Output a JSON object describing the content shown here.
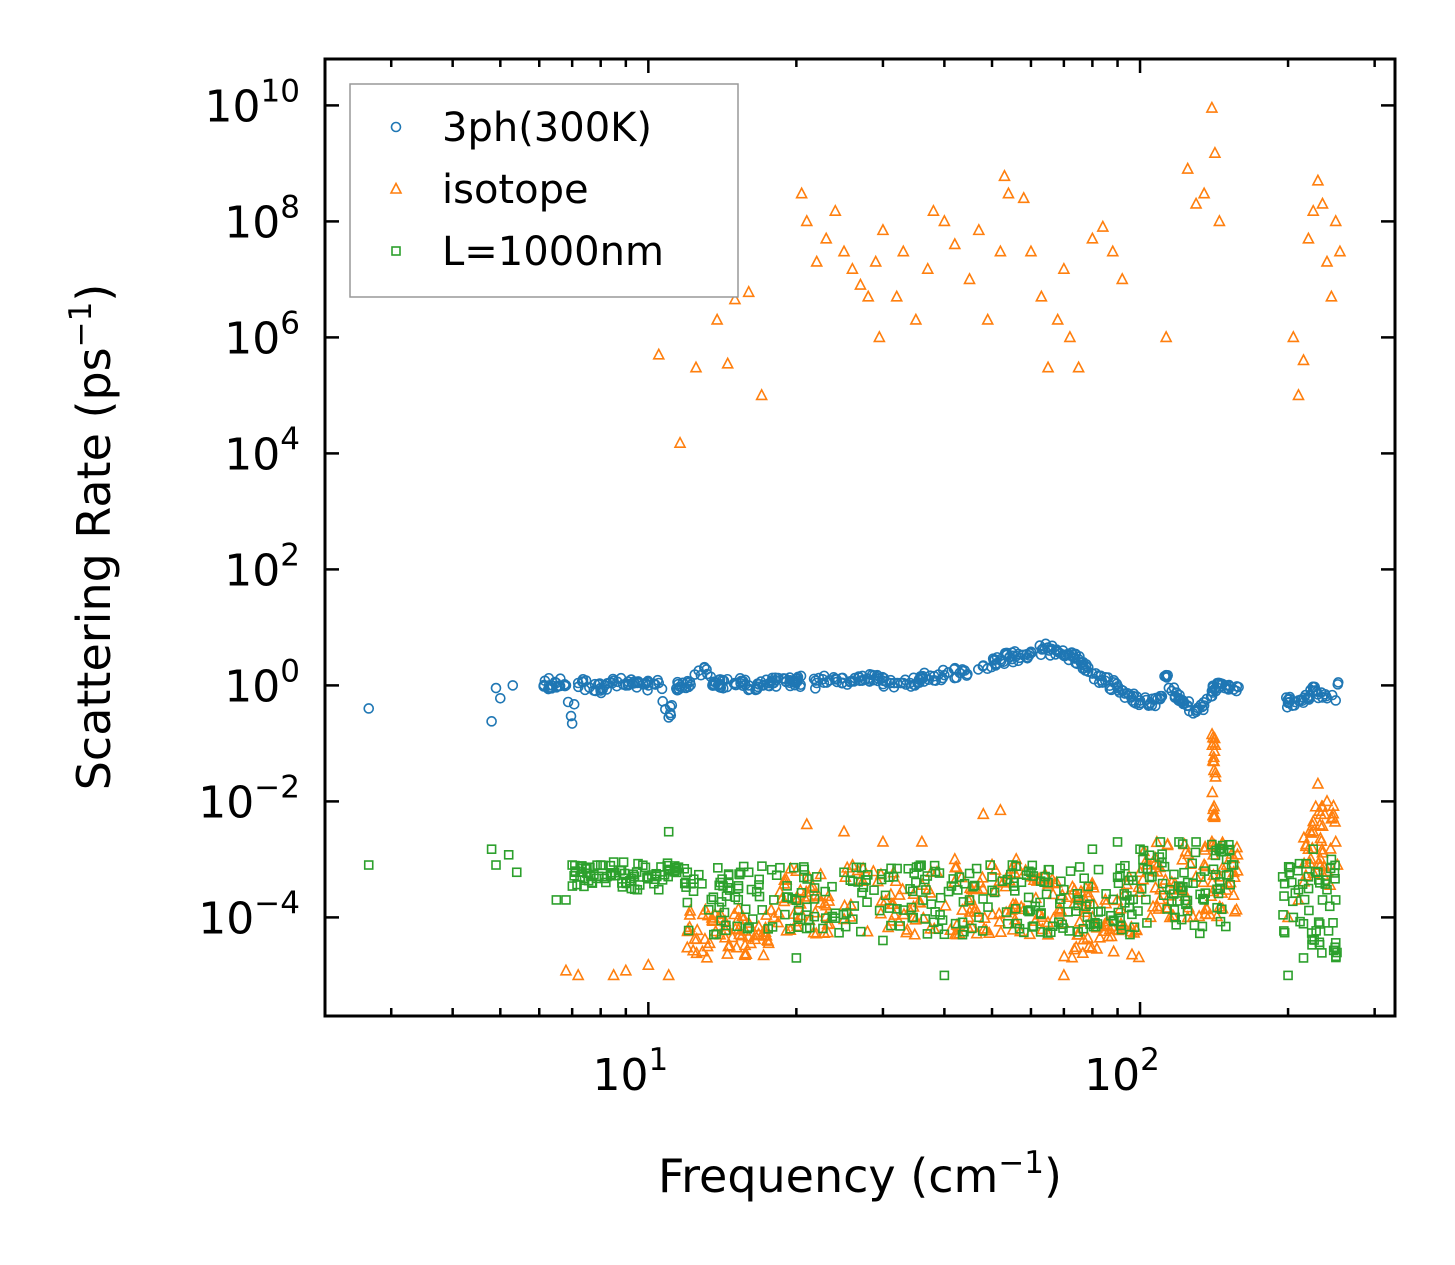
{
  "chart_data": {
    "type": "scatter",
    "xscale": "log",
    "yscale": "log",
    "xlim": [
      2.2,
      330
    ],
    "ylim_log10": [
      -5.7,
      10.8
    ],
    "xlabel": "Frequency (cm",
    "xlabel_sup": "−1",
    "xlabel_end": ")",
    "ylabel": "Scattering Rate (ps",
    "ylabel_sup": "−1",
    "ylabel_end": ")",
    "x_ticks": [
      {
        "value": 10,
        "base": "10",
        "exp": "1"
      },
      {
        "value": 100,
        "base": "10",
        "exp": "2"
      }
    ],
    "y_ticks": [
      {
        "value": -4,
        "base": "10",
        "exp": "−4"
      },
      {
        "value": -2,
        "base": "10",
        "exp": "−2"
      },
      {
        "value": 0,
        "base": "10",
        "exp": "0"
      },
      {
        "value": 2,
        "base": "10",
        "exp": "2"
      },
      {
        "value": 4,
        "base": "10",
        "exp": "4"
      },
      {
        "value": 6,
        "base": "10",
        "exp": "6"
      },
      {
        "value": 8,
        "base": "10",
        "exp": "8"
      },
      {
        "value": 10,
        "base": "10",
        "exp": "10"
      }
    ],
    "legend": {
      "position": "top-left",
      "entries": [
        {
          "label": "3ph(300K)",
          "color": "#1f77b4",
          "marker": "circle"
        },
        {
          "label": "isotope",
          "color": "#ff7f0e",
          "marker": "triangle"
        },
        {
          "label": "L=1000nm",
          "color": "#2ca02c",
          "marker": "square"
        }
      ]
    },
    "series": [
      {
        "name": "3ph(300K)",
        "color": "#1f77b4",
        "marker": "circle",
        "points": [
          [
            2.7,
            0.4
          ],
          [
            4.8,
            0.24
          ],
          [
            4.9,
            0.9
          ],
          [
            5.0,
            0.6
          ],
          [
            5.3,
            1.0
          ],
          [
            6.5,
            1.1
          ],
          [
            6.8,
            1.0
          ],
          [
            7.0,
            0.22
          ],
          [
            7.2,
            1.1
          ],
          [
            8.0,
            0.9
          ],
          [
            8.5,
            1.2
          ],
          [
            9.0,
            1.0
          ],
          [
            9.5,
            1.1
          ],
          [
            10.0,
            1.0
          ],
          [
            10.5,
            1.1
          ],
          [
            11.0,
            0.28
          ],
          [
            11.5,
            1.05
          ],
          [
            12.0,
            1.1
          ],
          [
            13.0,
            2.0
          ],
          [
            13.5,
            1.0
          ],
          [
            14.0,
            1.05
          ],
          [
            15.0,
            1.1
          ],
          [
            16.0,
            1.0
          ],
          [
            18.0,
            1.1
          ],
          [
            20.0,
            1.2
          ],
          [
            22.0,
            1.1
          ],
          [
            24.0,
            1.3
          ],
          [
            26.0,
            1.2
          ],
          [
            28.0,
            1.3
          ],
          [
            30.0,
            1.2
          ],
          [
            33.0,
            1.1
          ],
          [
            36.0,
            1.3
          ],
          [
            40.0,
            1.5
          ],
          [
            44.0,
            1.8
          ],
          [
            48.0,
            2.2
          ],
          [
            52.0,
            2.8
          ],
          [
            56.0,
            3.2
          ],
          [
            60.0,
            3.8
          ],
          [
            64.0,
            4.2
          ],
          [
            68.0,
            3.8
          ],
          [
            72.0,
            3.3
          ],
          [
            76.0,
            2.5
          ],
          [
            80.0,
            1.6
          ],
          [
            85.0,
            1.2
          ],
          [
            90.0,
            0.9
          ],
          [
            95.0,
            0.7
          ],
          [
            100.0,
            0.55
          ],
          [
            105.0,
            0.5
          ],
          [
            110.0,
            0.6
          ],
          [
            113.0,
            1.5
          ],
          [
            116.0,
            0.8
          ],
          [
            120.0,
            0.6
          ],
          [
            125.0,
            0.45
          ],
          [
            130.0,
            0.35
          ],
          [
            135.0,
            0.45
          ],
          [
            140.0,
            0.8
          ],
          [
            145.0,
            1.1
          ],
          [
            150.0,
            1.0
          ],
          [
            155.0,
            0.85
          ],
          [
            200.0,
            0.5
          ],
          [
            210.0,
            0.55
          ],
          [
            220.0,
            0.6
          ],
          [
            225.0,
            0.8
          ],
          [
            230.0,
            0.7
          ],
          [
            240.0,
            0.6
          ],
          [
            250.0,
            0.55
          ]
        ],
        "band": {
          "x": [
            6.0,
            255.0
          ],
          "low_factor": 0.8,
          "high_factor": 1.25
        }
      },
      {
        "name": "isotope",
        "color": "#ff7f0e",
        "marker": "triangle",
        "points": [
          [
            10.5,
            500000.0
          ],
          [
            11.6,
            15000.0
          ],
          [
            12.5,
            300000.0
          ],
          [
            13.8,
            2000000.0
          ],
          [
            14.5,
            350000.0
          ],
          [
            15.0,
            4500000.0
          ],
          [
            16.0,
            6000000.0
          ],
          [
            17.0,
            100000.0
          ],
          [
            20.5,
            300000000.0
          ],
          [
            21.0,
            100000000.0
          ],
          [
            22.0,
            20000000.0
          ],
          [
            23.0,
            50000000.0
          ],
          [
            24.0,
            150000000.0
          ],
          [
            25.0,
            30000000.0
          ],
          [
            26.0,
            15000000.0
          ],
          [
            27.0,
            8000000.0
          ],
          [
            28.0,
            5000000.0
          ],
          [
            29.0,
            20000000.0
          ],
          [
            29.5,
            1000000.0
          ],
          [
            30.0,
            70000000.0
          ],
          [
            32.0,
            5000000.0
          ],
          [
            33.0,
            30000000.0
          ],
          [
            35.0,
            2000000.0
          ],
          [
            37.0,
            15000000.0
          ],
          [
            38.0,
            150000000.0
          ],
          [
            40.0,
            100000000.0
          ],
          [
            42.0,
            40000000.0
          ],
          [
            45.0,
            10000000.0
          ],
          [
            47.0,
            70000000.0
          ],
          [
            49.0,
            2000000.0
          ],
          [
            52.0,
            30000000.0
          ],
          [
            53.0,
            600000000.0
          ],
          [
            54.0,
            300000000.0
          ],
          [
            58.0,
            250000000.0
          ],
          [
            60.0,
            30000000.0
          ],
          [
            63.0,
            5000000.0
          ],
          [
            65.0,
            300000.0
          ],
          [
            68.0,
            2000000.0
          ],
          [
            70.0,
            15000000.0
          ],
          [
            72.0,
            1000000.0
          ],
          [
            75.0,
            300000.0
          ],
          [
            80.0,
            50000000.0
          ],
          [
            84.0,
            80000000.0
          ],
          [
            88.0,
            30000000.0
          ],
          [
            92.0,
            10000000.0
          ],
          [
            113.0,
            1000000.0
          ],
          [
            125.0,
            800000000.0
          ],
          [
            130.0,
            200000000.0
          ],
          [
            135.0,
            300000000.0
          ],
          [
            140.0,
            9000000000.0
          ],
          [
            142.0,
            1500000000.0
          ],
          [
            145.0,
            100000000.0
          ],
          [
            205.0,
            1000000.0
          ],
          [
            210.0,
            100000.0
          ],
          [
            215.0,
            400000.0
          ],
          [
            220.0,
            50000000.0
          ],
          [
            225.0,
            150000000.0
          ],
          [
            230.0,
            500000000.0
          ],
          [
            235.0,
            200000000.0
          ],
          [
            240.0,
            20000000.0
          ],
          [
            245.0,
            5000000.0
          ],
          [
            250.0,
            100000000.0
          ],
          [
            255.0,
            30000000.0
          ],
          [
            6.8,
            1.2e-05
          ],
          [
            7.2,
            1e-05
          ],
          [
            8.5,
            1e-05
          ],
          [
            9.0,
            1.2e-05
          ],
          [
            10.0,
            1.5e-05
          ],
          [
            11.0,
            1e-05
          ],
          [
            12.0,
            3e-05
          ],
          [
            14.0,
            5e-05
          ],
          [
            16.0,
            8e-05
          ],
          [
            18.0,
            0.0001
          ],
          [
            20.0,
            0.0002
          ],
          [
            21.0,
            0.004
          ],
          [
            25.0,
            0.003
          ],
          [
            30.0,
            0.002
          ],
          [
            36.0,
            0.002
          ],
          [
            42.0,
            0.001
          ],
          [
            48.0,
            0.006
          ],
          [
            50.0,
            0.0008
          ],
          [
            52.0,
            0.007
          ],
          [
            56.0,
            0.001
          ],
          [
            60.0,
            0.0005
          ],
          [
            65.0,
            5e-05
          ],
          [
            70.0,
            1e-05
          ],
          [
            75.0,
            5e-05
          ],
          [
            80.0,
            0.0001
          ],
          [
            85.0,
            0.0002
          ],
          [
            95.0,
            0.0005
          ],
          [
            100.0,
            0.0006
          ],
          [
            110.0,
            0.0003
          ],
          [
            115.0,
            0.0001
          ],
          [
            120.0,
            0.0003
          ],
          [
            125.0,
            0.0001
          ],
          [
            130.0,
            0.0005
          ],
          [
            135.0,
            0.0008
          ],
          [
            140.0,
            0.002
          ],
          [
            145.0,
            0.0005
          ],
          [
            150.0,
            0.0008
          ],
          [
            155.0,
            0.0006
          ],
          [
            200.0,
            0.0001
          ],
          [
            210.0,
            0.0002
          ],
          [
            220.0,
            0.0015
          ],
          [
            225.0,
            0.003
          ],
          [
            230.0,
            0.02
          ],
          [
            235.0,
            0.008
          ],
          [
            240.0,
            0.01
          ],
          [
            245.0,
            0.005
          ],
          [
            250.0,
            0.002
          ],
          [
            252.0,
            0.0008
          ]
        ],
        "bands": [
          {
            "x": [
              12.0,
              18.0
            ],
            "y_low": 2e-05,
            "y_high": 0.00015
          },
          {
            "x": [
              18.0,
              70.0
            ],
            "y_low": 5e-05,
            "y_high": 0.0008
          },
          {
            "x": [
              70.0,
              100.0
            ],
            "y_low": 2e-05,
            "y_high": 0.0005
          },
          {
            "x": [
              100.0,
              160.0
            ],
            "y_low": 0.0001,
            "y_high": 0.002
          },
          {
            "x": [
              140.0,
              142.5
            ],
            "y_low": 0.005,
            "y_high": 0.15
          },
          {
            "x": [
              215.0,
              250.0
            ],
            "y_low": 0.0003,
            "y_high": 0.01
          }
        ]
      },
      {
        "name": "L=1000nm",
        "color": "#2ca02c",
        "marker": "square",
        "points": [
          [
            2.7,
            0.0008
          ],
          [
            4.8,
            0.0015
          ],
          [
            4.9,
            0.0008
          ],
          [
            5.2,
            0.0012
          ],
          [
            5.4,
            0.0006
          ],
          [
            6.5,
            0.0002
          ],
          [
            6.8,
            0.0002
          ],
          [
            7.0,
            0.0008
          ],
          [
            7.5,
            0.0007
          ],
          [
            8.0,
            0.0008
          ],
          [
            8.5,
            0.0009
          ],
          [
            9.0,
            0.0004
          ],
          [
            9.5,
            0.0003
          ],
          [
            10.0,
            0.0005
          ],
          [
            10.5,
            0.0003
          ],
          [
            11.0,
            0.003
          ],
          [
            11.5,
            0.0007
          ],
          [
            12.0,
            0.0006
          ],
          [
            14.0,
            0.0004
          ],
          [
            16.0,
            0.0006
          ],
          [
            18.0,
            0.0002
          ],
          [
            20.0,
            2e-05
          ],
          [
            22.0,
            0.0005
          ],
          [
            25.0,
            0.0006
          ],
          [
            30.0,
            4e-05
          ],
          [
            35.0,
            0.0004
          ],
          [
            40.0,
            1e-05
          ],
          [
            45.0,
            0.0002
          ],
          [
            50.0,
            0.0005
          ],
          [
            55.0,
            0.0008
          ],
          [
            60.0,
            0.0006
          ],
          [
            65.0,
            0.0004
          ],
          [
            70.0,
            0.0003
          ],
          [
            75.0,
            0.0002
          ],
          [
            80.0,
            0.0015
          ],
          [
            90.0,
            0.002
          ],
          [
            100.0,
            0.0015
          ],
          [
            110.0,
            0.002
          ],
          [
            115.0,
            0.0003
          ],
          [
            120.0,
            0.002
          ],
          [
            125.0,
            0.0004
          ],
          [
            130.0,
            0.002
          ],
          [
            135.0,
            0.0002
          ],
          [
            140.0,
            0.0018
          ],
          [
            145.0,
            0.0015
          ],
          [
            150.0,
            0.001
          ],
          [
            155.0,
            0.0008
          ],
          [
            195.0,
            0.0005
          ],
          [
            200.0,
            1e-05
          ],
          [
            205.0,
            0.0001
          ],
          [
            210.0,
            0.0003
          ],
          [
            215.0,
            2e-05
          ],
          [
            220.0,
            0.0005
          ],
          [
            225.0,
            0.0015
          ],
          [
            230.0,
            0.0006
          ],
          [
            235.0,
            0.0002
          ],
          [
            240.0,
            0.0003
          ],
          [
            245.0,
            0.001
          ],
          [
            250.0,
            0.0002
          ]
        ],
        "bands": [
          {
            "x": [
              7.0,
              12.0
            ],
            "y_low": 0.0003,
            "y_high": 0.0009
          },
          {
            "x": [
              12.0,
              100.0
            ],
            "y_low": 5e-05,
            "y_high": 0.0008
          },
          {
            "x": [
              100.0,
              155.0
            ],
            "y_low": 5e-05,
            "y_high": 0.002
          },
          {
            "x": [
              195.0,
              252.0
            ],
            "y_low": 2e-05,
            "y_high": 0.001
          }
        ]
      }
    ]
  }
}
